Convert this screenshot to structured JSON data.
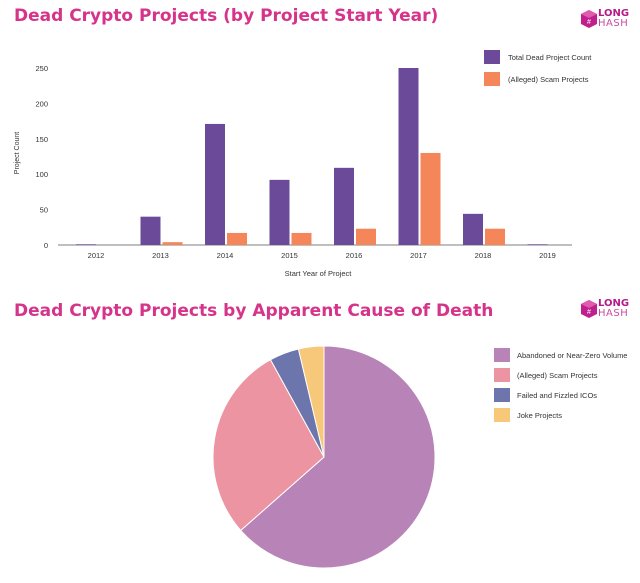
{
  "titles": {
    "bar": "Dead Crypto Projects (by Project Start Year)",
    "pie": "Dead Crypto Projects by Apparent Cause of Death"
  },
  "logo": {
    "line1": "LONG",
    "line2": "HASH"
  },
  "colors": {
    "title": "#d6338a",
    "total": "#6b4a9a",
    "scam_bar": "#f5865a",
    "abandoned": "#b883b7",
    "scam_pie": "#ec94a1",
    "failed": "#6d76ac",
    "joke": "#f7c87a"
  },
  "chart_data": [
    {
      "type": "bar",
      "title": "Dead Crypto Projects (by Project Start Year)",
      "xlabel": "Start Year of Project",
      "ylabel": "Project Count",
      "ylim": [
        0,
        250
      ],
      "yticks": [
        0,
        50,
        100,
        150,
        200,
        250
      ],
      "grid": false,
      "legend_position": "top-right",
      "categories": [
        "2012",
        "2013",
        "2014",
        "2015",
        "2016",
        "2017",
        "2018",
        "2019"
      ],
      "series": [
        {
          "name": "Total Dead Project Count",
          "values": [
            1,
            40,
            171,
            92,
            109,
            250,
            44,
            1
          ]
        },
        {
          "name": "(Alleged) Scam Projects",
          "values": [
            0,
            4,
            17,
            17,
            23,
            130,
            23,
            0
          ]
        }
      ]
    },
    {
      "type": "pie",
      "title": "Dead Crypto Projects by Apparent Cause of Death",
      "legend_position": "right",
      "labels": [
        "Abandoned or Near-Zero Volume",
        "(Alleged) Scam Projects",
        "Failed and Fizzled ICOs",
        "Joke Projects"
      ],
      "values": [
        63.5,
        28.5,
        4.3,
        3.7
      ],
      "value_unit": "percent (estimated)"
    }
  ]
}
